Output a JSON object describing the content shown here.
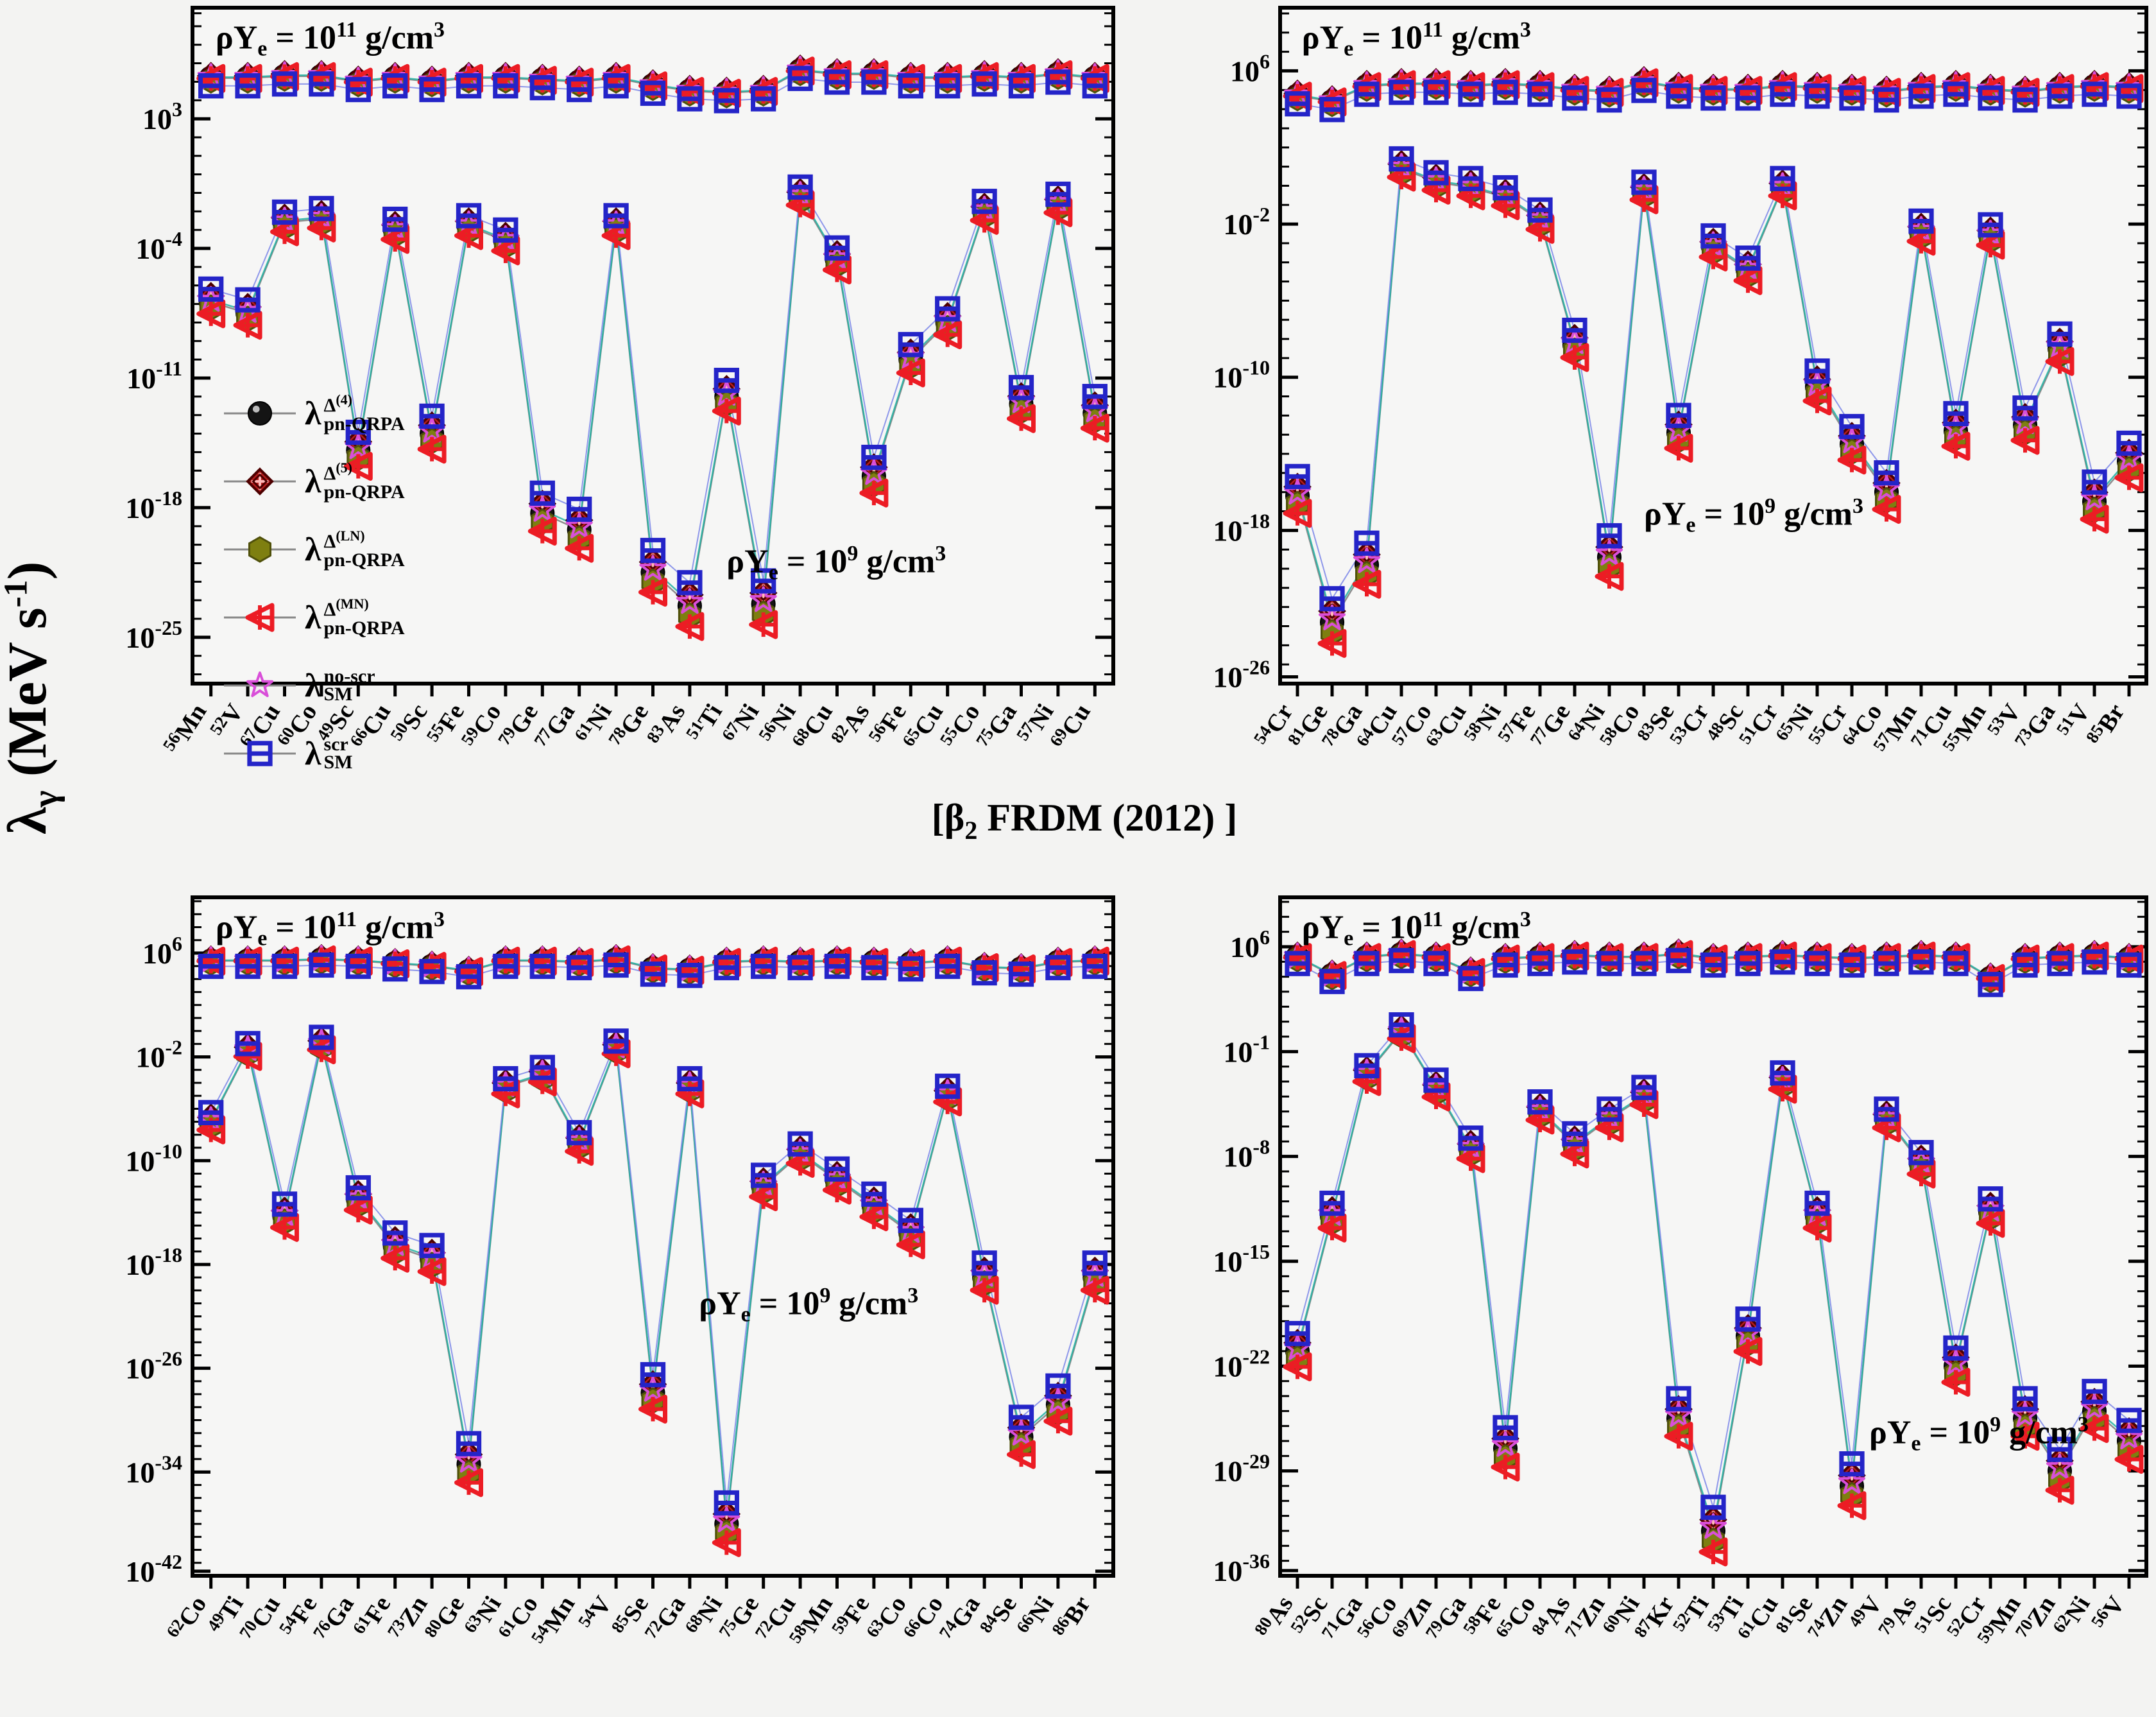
{
  "figure_note": "Four-panel log-scale scatter/line figure comparing gamma-heating rates from six nuclear models at two stellar densities. All numeric values are log10(lambda) estimates read from the plotted axes.",
  "ylabel": {
    "lambda": "λ",
    "sub": "γ",
    "rest": " (MeV s",
    "exp": "-1",
    "close": ")"
  },
  "center_title": {
    "open": "[β",
    "sub": "2",
    "rest": " FRDM (2012) ]"
  },
  "density_text": {
    "prefix": "ρY",
    "sub": "e",
    "eq": " = 10",
    "exp_upper": "11",
    "exp_lower": "9",
    "unit": " g/cm",
    "unit_exp": "3"
  },
  "legend": [
    {
      "series": "pnqrpa-d4",
      "sup_base": "Δ",
      "sup_exp": "(4)",
      "sub": "pn-QRPA"
    },
    {
      "series": "pnqrpa-d5",
      "sup_base": "Δ",
      "sup_exp": "(5)",
      "sub": "pn-QRPA"
    },
    {
      "series": "pnqrpa-ln",
      "sup_base": "Δ",
      "sup_exp": "(LN)",
      "sub": "pn-QRPA"
    },
    {
      "series": "pnqrpa-mn",
      "sup_base": "Δ",
      "sup_exp": "(MN)",
      "sub": "pn-QRPA"
    },
    {
      "series": "sm-noscr",
      "sup_base": "no-scr",
      "sup_exp": "",
      "sub": "SM"
    },
    {
      "series": "sm-scr",
      "sup_base": "scr",
      "sup_exp": "",
      "sub": "SM"
    }
  ],
  "series": [
    {
      "id": "pnqrpa-d4",
      "marker": "circle",
      "color": "#141414",
      "upper_off": 0.0,
      "lower_off": 0.0
    },
    {
      "id": "pnqrpa-d5",
      "marker": "diamond",
      "color": "#8f1515",
      "upper_off": 0.12,
      "lower_off": 0.45
    },
    {
      "id": "pnqrpa-ln",
      "marker": "hexagon",
      "color": "#7e7f10",
      "upper_off": -0.12,
      "lower_off": -0.4
    },
    {
      "id": "pnqrpa-mn",
      "marker": "triangle",
      "color": "#ec1c24",
      "upper_off": -0.02,
      "lower_off": -0.85
    },
    {
      "id": "sm-noscr",
      "marker": "star",
      "color": "#d94fd9",
      "upper_off": 0.05,
      "lower_off": 0.15
    },
    {
      "id": "sm-scr",
      "marker": "square",
      "color": "#2424c8",
      "upper_off": -0.42,
      "lower_off": 0.95
    }
  ],
  "line_colors": {
    "qrpa": "#7a7a7a",
    "sm_noscr": "#21b2a2",
    "sm_scr": "#7b86e8"
  },
  "chart_data": [
    {
      "type": "scatter-line",
      "panel": "top-left",
      "density_upper": "1e11 g/cm3",
      "density_lower": "1e9 g/cm3",
      "ytick_exponents": [
        3,
        -4,
        -11,
        -18,
        -25
      ],
      "ylim_exponents": [
        -27.5,
        9.0
      ],
      "categories": [
        {
          "mass": "56",
          "el": "Mn"
        },
        {
          "mass": "52",
          "el": "V"
        },
        {
          "mass": "67",
          "el": "Cu"
        },
        {
          "mass": "60",
          "el": "Co"
        },
        {
          "mass": "49",
          "el": "Sc"
        },
        {
          "mass": "66",
          "el": "Cu"
        },
        {
          "mass": "50",
          "el": "Sc"
        },
        {
          "mass": "55",
          "el": "Fe"
        },
        {
          "mass": "59",
          "el": "Co"
        },
        {
          "mass": "79",
          "el": "Ge"
        },
        {
          "mass": "77",
          "el": "Ga"
        },
        {
          "mass": "61",
          "el": "Ni"
        },
        {
          "mass": "78",
          "el": "Ge"
        },
        {
          "mass": "83",
          "el": "As"
        },
        {
          "mass": "51",
          "el": "Ti"
        },
        {
          "mass": "67",
          "el": "Ni"
        },
        {
          "mass": "56",
          "el": "Ni"
        },
        {
          "mass": "68",
          "el": "Cu"
        },
        {
          "mass": "82",
          "el": "As"
        },
        {
          "mass": "56",
          "el": "Fe"
        },
        {
          "mass": "65",
          "el": "Cu"
        },
        {
          "mass": "55",
          "el": "Co"
        },
        {
          "mass": "75",
          "el": "Ga"
        },
        {
          "mass": "57",
          "el": "Ni"
        },
        {
          "mass": "69",
          "el": "Cu"
        }
      ],
      "upper_band_log10": [
        5.2,
        5.2,
        5.3,
        5.3,
        5.0,
        5.2,
        5.0,
        5.2,
        5.2,
        5.1,
        5.0,
        5.2,
        4.8,
        4.5,
        4.4,
        4.5,
        5.6,
        5.4,
        5.4,
        5.2,
        5.2,
        5.3,
        5.2,
        5.4,
        5.2
      ],
      "lower_band_log10": [
        -6.9,
        -7.5,
        -2.6,
        -2.4,
        -14.9,
        -3.0,
        -14.0,
        -2.8,
        -3.6,
        -18.3,
        -19.2,
        -2.8,
        -21.5,
        -23.3,
        -12.0,
        -23.2,
        -1.2,
        -4.6,
        -16.3,
        -10.0,
        -8.0,
        -2.0,
        -12.4,
        -1.6,
        -12.9
      ]
    },
    {
      "type": "scatter-line",
      "panel": "top-right",
      "density_upper": "1e11 g/cm3",
      "density_lower": "1e9 g/cm3",
      "ytick_exponents": [
        6,
        -2,
        -10,
        -18,
        -26
      ],
      "ylim_exponents": [
        -26.0,
        9.3
      ],
      "categories": [
        {
          "mass": "54",
          "el": "Cr"
        },
        {
          "mass": "81",
          "el": "Ge"
        },
        {
          "mass": "78",
          "el": "Ga"
        },
        {
          "mass": "64",
          "el": "Cu"
        },
        {
          "mass": "57",
          "el": "Co"
        },
        {
          "mass": "63",
          "el": "Cu"
        },
        {
          "mass": "58",
          "el": "Ni"
        },
        {
          "mass": "57",
          "el": "Fe"
        },
        {
          "mass": "77",
          "el": "Ge"
        },
        {
          "mass": "64",
          "el": "Ni"
        },
        {
          "mass": "58",
          "el": "Co"
        },
        {
          "mass": "83",
          "el": "Se"
        },
        {
          "mass": "53",
          "el": "Cr"
        },
        {
          "mass": "48",
          "el": "Sc"
        },
        {
          "mass": "51",
          "el": "Cr"
        },
        {
          "mass": "65",
          "el": "Ni"
        },
        {
          "mass": "55",
          "el": "Cr"
        },
        {
          "mass": "64",
          "el": "Co"
        },
        {
          "mass": "57",
          "el": "Mn"
        },
        {
          "mass": "71",
          "el": "Cu"
        },
        {
          "mass": "55",
          "el": "Mn"
        },
        {
          "mass": "53",
          "el": "V"
        },
        {
          "mass": "73",
          "el": "Ga"
        },
        {
          "mass": "51",
          "el": "V"
        },
        {
          "mass": "85",
          "el": "Br"
        }
      ],
      "upper_band_log10": [
        4.7,
        4.4,
        5.2,
        5.3,
        5.3,
        5.2,
        5.3,
        5.2,
        5.0,
        4.9,
        5.4,
        5.1,
        5.0,
        5.0,
        5.2,
        5.1,
        5.0,
        4.9,
        5.1,
        5.2,
        5.0,
        4.9,
        5.1,
        5.2,
        5.1
      ],
      "lower_band_log10": [
        -16.2,
        -22.8,
        -19.8,
        0.9,
        0.2,
        -0.1,
        -0.6,
        -1.8,
        -8.3,
        -19.4,
        -0.3,
        -12.9,
        -3.2,
        -4.4,
        -0.1,
        -10.5,
        -13.5,
        -16.0,
        -2.4,
        -12.8,
        -2.6,
        -12.5,
        -8.5,
        -16.5,
        -14.4
      ]
    },
    {
      "type": "scatter-line",
      "panel": "bottom-left",
      "density_upper": "1e11 g/cm3",
      "density_lower": "1e9 g/cm3",
      "ytick_exponents": [
        6,
        -2,
        -10,
        -18,
        -26,
        -34,
        -42
      ],
      "ylim_exponents": [
        -42.0,
        10.3
      ],
      "categories": [
        {
          "mass": "62",
          "el": "Co"
        },
        {
          "mass": "49",
          "el": "Ti"
        },
        {
          "mass": "70",
          "el": "Cu"
        },
        {
          "mass": "54",
          "el": "Fe"
        },
        {
          "mass": "76",
          "el": "Ga"
        },
        {
          "mass": "61",
          "el": "Fe"
        },
        {
          "mass": "73",
          "el": "Zn"
        },
        {
          "mass": "80",
          "el": "Ge"
        },
        {
          "mass": "63",
          "el": "Ni"
        },
        {
          "mass": "61",
          "el": "Co"
        },
        {
          "mass": "54",
          "el": "Mn"
        },
        {
          "mass": "54",
          "el": "V"
        },
        {
          "mass": "85",
          "el": "Se"
        },
        {
          "mass": "72",
          "el": "Ga"
        },
        {
          "mass": "68",
          "el": "Ni"
        },
        {
          "mass": "75",
          "el": "Ge"
        },
        {
          "mass": "72",
          "el": "Cu"
        },
        {
          "mass": "58",
          "el": "Mn"
        },
        {
          "mass": "59",
          "el": "Fe"
        },
        {
          "mass": "63",
          "el": "Co"
        },
        {
          "mass": "66",
          "el": "Co"
        },
        {
          "mass": "74",
          "el": "Ga"
        },
        {
          "mass": "84",
          "el": "Se"
        },
        {
          "mass": "66",
          "el": "Ni"
        },
        {
          "mass": "86",
          "el": "Br"
        }
      ],
      "upper_band_log10": [
        5.4,
        5.4,
        5.4,
        5.5,
        5.4,
        5.2,
        5.0,
        4.6,
        5.4,
        5.4,
        5.3,
        5.5,
        4.8,
        4.7,
        5.3,
        5.4,
        5.3,
        5.4,
        5.3,
        5.2,
        5.4,
        4.9,
        4.8,
        5.3,
        5.4
      ],
      "lower_band_log10": [
        -7.0,
        -1.5,
        -14.3,
        -1.0,
        -13.0,
        -16.6,
        -17.6,
        -33.4,
        -4.3,
        -3.4,
        -8.6,
        -1.3,
        -27.9,
        -4.3,
        -38.0,
        -12.0,
        -9.5,
        -11.5,
        -13.5,
        -15.6,
        -4.9,
        -19.0,
        -31.3,
        -28.8,
        -19.0
      ]
    },
    {
      "type": "scatter-line",
      "panel": "bottom-right",
      "density_upper": "1e11 g/cm3",
      "density_lower": "1e9 g/cm3",
      "ytick_exponents": [
        6,
        -1,
        -8,
        -15,
        -22,
        -29,
        -36
      ],
      "ylim_exponents": [
        -36.0,
        9.3
      ],
      "categories": [
        {
          "mass": "80",
          "el": "As"
        },
        {
          "mass": "52",
          "el": "Sc"
        },
        {
          "mass": "71",
          "el": "Ga"
        },
        {
          "mass": "56",
          "el": "Co"
        },
        {
          "mass": "69",
          "el": "Zn"
        },
        {
          "mass": "79",
          "el": "Ga"
        },
        {
          "mass": "58",
          "el": "Fe"
        },
        {
          "mass": "65",
          "el": "Co"
        },
        {
          "mass": "84",
          "el": "As"
        },
        {
          "mass": "71",
          "el": "Zn"
        },
        {
          "mass": "60",
          "el": "Ni"
        },
        {
          "mass": "87",
          "el": "Kr"
        },
        {
          "mass": "52",
          "el": "Ti"
        },
        {
          "mass": "53",
          "el": "Ti"
        },
        {
          "mass": "61",
          "el": "Cu"
        },
        {
          "mass": "81",
          "el": "Se"
        },
        {
          "mass": "74",
          "el": "Zn"
        },
        {
          "mass": "49",
          "el": "V"
        },
        {
          "mass": "79",
          "el": "As"
        },
        {
          "mass": "51",
          "el": "Sc"
        },
        {
          "mass": "52",
          "el": "Cr"
        },
        {
          "mass": "59",
          "el": "Mn"
        },
        {
          "mass": "70",
          "el": "Zn"
        },
        {
          "mass": "62",
          "el": "Ni"
        },
        {
          "mass": "56",
          "el": "V"
        }
      ],
      "upper_band_log10": [
        5.3,
        4.1,
        5.3,
        5.5,
        5.3,
        4.3,
        5.2,
        5.3,
        5.4,
        5.3,
        5.3,
        5.5,
        5.2,
        5.3,
        5.4,
        5.3,
        5.2,
        5.3,
        5.4,
        5.3,
        3.9,
        5.2,
        5.3,
        5.4,
        5.2
      ],
      "lower_band_log10": [
        -21.0,
        -12.0,
        -2.5,
        0.3,
        -3.5,
        -7.5,
        -27.5,
        -5.0,
        -7.2,
        -5.5,
        -4.0,
        -25.5,
        -33.0,
        -20.0,
        -3.0,
        -12.0,
        -30.0,
        -5.5,
        -8.5,
        -22.0,
        -11.7,
        -25.5,
        -29.0,
        -25.0,
        -27.0
      ]
    }
  ]
}
